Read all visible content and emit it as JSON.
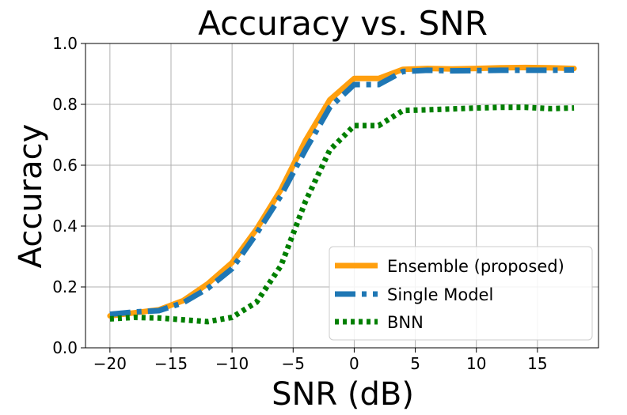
{
  "chart_data": {
    "type": "line",
    "title": "Accuracy vs. SNR",
    "xlabel": "SNR (dB)",
    "ylabel": "Accuracy",
    "xlim": [
      -22,
      20
    ],
    "ylim": [
      0,
      1.0
    ],
    "xticks": [
      -20,
      -15,
      -10,
      -5,
      0,
      5,
      10,
      15
    ],
    "xtick_labels": [
      "−20",
      "−15",
      "−10",
      "−5",
      "0",
      "5",
      "10",
      "15"
    ],
    "yticks": [
      0.0,
      0.2,
      0.4,
      0.6,
      0.8,
      1.0
    ],
    "ytick_labels": [
      "0.0",
      "0.2",
      "0.4",
      "0.6",
      "0.8",
      "1.0"
    ],
    "grid": true,
    "legend_position": "lower-right",
    "x": [
      -20,
      -18,
      -16,
      -14,
      -12,
      -10,
      -8,
      -6,
      -4,
      -2,
      0,
      2,
      4,
      6,
      8,
      10,
      12,
      14,
      16,
      18
    ],
    "series": [
      {
        "name": "Ensemble (proposed)",
        "color": "#FF9F0E",
        "style": "solid",
        "values": [
          0.105,
          0.115,
          0.125,
          0.155,
          0.21,
          0.28,
          0.39,
          0.52,
          0.68,
          0.815,
          0.885,
          0.885,
          0.915,
          0.918,
          0.916,
          0.918,
          0.92,
          0.921,
          0.92,
          0.918
        ]
      },
      {
        "name": "Single Model",
        "color": "#1F77B4",
        "style": "dashdot",
        "values": [
          0.11,
          0.118,
          0.122,
          0.148,
          0.195,
          0.26,
          0.375,
          0.5,
          0.65,
          0.79,
          0.865,
          0.865,
          0.908,
          0.912,
          0.91,
          0.911,
          0.912,
          0.912,
          0.912,
          0.913
        ]
      },
      {
        "name": "BNN",
        "color": "#007F00",
        "style": "dotted",
        "values": [
          0.095,
          0.1,
          0.098,
          0.092,
          0.086,
          0.1,
          0.15,
          0.27,
          0.48,
          0.65,
          0.73,
          0.73,
          0.78,
          0.782,
          0.785,
          0.788,
          0.79,
          0.79,
          0.786,
          0.788
        ]
      }
    ]
  }
}
